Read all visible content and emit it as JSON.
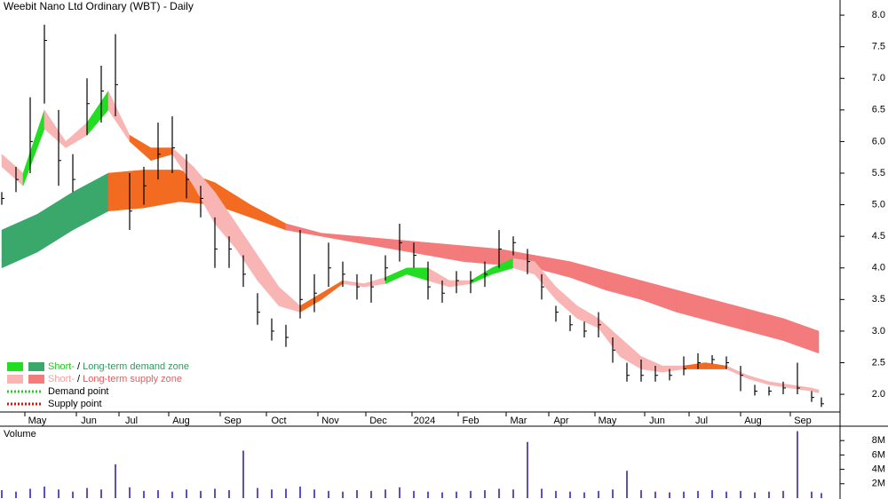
{
  "chart_data": [
    {
      "type": "ohlc",
      "title": "Weebit Nano Ltd Ordinary (WBT) - Daily",
      "color": "#000000",
      "x": [
        0,
        8,
        16,
        24,
        32,
        40,
        48,
        56,
        64,
        72,
        80,
        88,
        96,
        104,
        112,
        120,
        128,
        136,
        144,
        152,
        160,
        168,
        176,
        184,
        192,
        200,
        208,
        216,
        224,
        232,
        240,
        248,
        256,
        264,
        272,
        280,
        288,
        296,
        304,
        312,
        320,
        328,
        336,
        344,
        352,
        360,
        368,
        376,
        384,
        392,
        400,
        408,
        416,
        424,
        432,
        440,
        448,
        456,
        461.5
      ],
      "high": [
        5.2,
        5.6,
        6.7,
        7.85,
        6.5,
        5.8,
        7.0,
        7.2,
        7.7,
        5.5,
        5.6,
        6.3,
        6.4,
        5.8,
        5.3,
        4.8,
        4.5,
        4.2,
        3.6,
        3.2,
        3.1,
        4.6,
        3.9,
        4.4,
        4.1,
        3.9,
        3.9,
        4.2,
        4.7,
        4.4,
        4.1,
        3.8,
        3.95,
        3.95,
        4.1,
        4.6,
        4.5,
        4.3,
        3.9,
        3.4,
        3.25,
        3.15,
        3.3,
        2.9,
        2.5,
        2.55,
        2.45,
        2.4,
        2.6,
        2.65,
        2.62,
        2.6,
        2.45,
        2.15,
        2.12,
        2.2,
        2.5,
        2.05,
        1.95
      ],
      "low": [
        5.0,
        5.2,
        5.5,
        6.6,
        5.3,
        5.2,
        6.1,
        6.3,
        6.4,
        4.6,
        5.0,
        5.4,
        5.5,
        5.1,
        4.8,
        4.0,
        4.0,
        3.7,
        3.1,
        2.85,
        2.75,
        3.2,
        3.3,
        3.7,
        3.7,
        3.5,
        3.45,
        3.8,
        4.1,
        4.0,
        3.5,
        3.45,
        3.6,
        3.6,
        3.7,
        4.0,
        4.2,
        3.9,
        3.5,
        3.15,
        3.0,
        2.9,
        2.9,
        2.5,
        2.2,
        2.2,
        2.2,
        2.22,
        2.3,
        2.4,
        2.48,
        2.4,
        2.05,
        1.98,
        1.98,
        2.0,
        2.0,
        1.88,
        1.8
      ],
      "close": [
        5.1,
        5.4,
        6.0,
        7.6,
        5.7,
        5.4,
        6.6,
        6.8,
        6.9,
        4.9,
        5.3,
        5.8,
        5.9,
        5.4,
        5.1,
        4.3,
        4.3,
        3.9,
        3.3,
        3.0,
        2.9,
        3.5,
        3.6,
        4.0,
        3.9,
        3.7,
        3.7,
        4.0,
        4.4,
        4.2,
        3.7,
        3.6,
        3.8,
        3.8,
        3.9,
        4.3,
        4.4,
        4.1,
        3.7,
        3.3,
        3.1,
        3.0,
        3.1,
        2.7,
        2.3,
        2.3,
        2.3,
        2.3,
        2.4,
        2.5,
        2.55,
        2.5,
        2.3,
        2.05,
        2.05,
        2.1,
        2.1,
        1.95,
        1.85
      ],
      "bands": [
        {
          "x": [
            0,
            20,
            40,
            60,
            80,
            100,
            120,
            140,
            160,
            180,
            200,
            220,
            240,
            260,
            280,
            300,
            320,
            340,
            360,
            380,
            400,
            420,
            440,
            460
          ],
          "upper": [
            4.6,
            4.85,
            5.2,
            5.5,
            5.55,
            5.55,
            5.35,
            5.0,
            4.7,
            4.55,
            4.5,
            4.45,
            4.4,
            4.35,
            4.3,
            4.2,
            4.1,
            3.95,
            3.8,
            3.65,
            3.5,
            3.35,
            3.2,
            3.0
          ],
          "lower": [
            4.0,
            4.25,
            4.6,
            4.9,
            4.95,
            5.05,
            5.0,
            4.8,
            4.6,
            4.5,
            4.4,
            4.3,
            4.2,
            4.1,
            4.05,
            4.0,
            3.85,
            3.65,
            3.5,
            3.3,
            3.15,
            3.0,
            2.85,
            2.65
          ],
          "colors": [
            "#3aa86a",
            "#3aa86a",
            "#3aa86a",
            "#f36b21",
            "#f36b21",
            "#f36b21",
            "#f36b21",
            "#f36b21",
            "#f47b7b",
            "#f47b7b",
            "#f47b7b",
            "#f47b7b",
            "#f47b7b",
            "#f47b7b",
            "#f47b7b",
            "#f47b7b",
            "#f47b7b",
            "#f47b7b",
            "#f47b7b",
            "#f47b7b",
            "#f47b7b",
            "#f47b7b",
            "#f47b7b"
          ]
        },
        {
          "x": [
            0,
            12,
            24,
            36,
            48,
            60,
            72,
            84,
            96,
            108,
            120,
            132,
            144,
            156,
            168,
            180,
            192,
            204,
            216,
            228,
            240,
            252,
            264,
            276,
            288,
            300,
            312,
            324,
            336,
            348,
            360,
            372,
            384,
            396,
            408,
            420,
            432,
            444,
            456,
            460
          ],
          "upper": [
            5.8,
            5.5,
            6.5,
            6.0,
            6.3,
            6.8,
            6.1,
            5.9,
            5.9,
            5.6,
            5.2,
            4.7,
            4.2,
            3.7,
            3.4,
            3.6,
            3.8,
            3.75,
            3.85,
            4.0,
            4.0,
            3.8,
            3.8,
            4.0,
            4.15,
            4.1,
            3.7,
            3.4,
            3.2,
            2.9,
            2.6,
            2.45,
            2.45,
            2.5,
            2.45,
            2.3,
            2.2,
            2.15,
            2.1,
            2.07
          ],
          "lower": [
            5.6,
            5.3,
            6.2,
            5.9,
            6.1,
            6.5,
            6.0,
            5.7,
            5.8,
            5.3,
            4.7,
            4.3,
            3.8,
            3.4,
            3.3,
            3.5,
            3.75,
            3.7,
            3.75,
            3.9,
            3.8,
            3.7,
            3.75,
            3.9,
            4.0,
            3.9,
            3.5,
            3.2,
            3.05,
            2.6,
            2.4,
            2.35,
            2.4,
            2.4,
            2.4,
            2.25,
            2.15,
            2.1,
            2.05,
            2.02
          ],
          "colors": [
            "#f9b4b4",
            "#22dd22",
            "#f9b4b4",
            "#f9b4b4",
            "#22dd22",
            "#f9b4b4",
            "#f36b21",
            "#f36b21",
            "#f9b4b4",
            "#f9b4b4",
            "#f9b4b4",
            "#f9b4b4",
            "#f9b4b4",
            "#f9b4b4",
            "#f36b21",
            "#f36b21",
            "#f9b4b4",
            "#f9b4b4",
            "#22dd22",
            "#22dd22",
            "#f9b4b4",
            "#f9b4b4",
            "#22dd22",
            "#22dd22",
            "#f9b4b4",
            "#f9b4b4",
            "#f9b4b4",
            "#f9b4b4",
            "#f9b4b4",
            "#f9b4b4",
            "#f9b4b4",
            "#f9b4b4",
            "#f36b21",
            "#f36b21",
            "#f9b4b4",
            "#f9b4b4",
            "#f9b4b4",
            "#f9b4b4",
            "#f9b4b4"
          ]
        }
      ],
      "xlim": [
        0,
        472
      ],
      "xticks": [
        {
          "value": 20,
          "label": "May"
        },
        {
          "value": 49,
          "label": "Jun"
        },
        {
          "value": 73,
          "label": "Jul"
        },
        {
          "value": 101,
          "label": "Aug"
        },
        {
          "value": 130,
          "label": "Sep"
        },
        {
          "value": 156,
          "label": "Oct"
        },
        {
          "value": 185,
          "label": "Nov"
        },
        {
          "value": 212,
          "label": "Dec"
        },
        {
          "value": 238,
          "label": "2024"
        },
        {
          "value": 264,
          "label": "Feb"
        },
        {
          "value": 291,
          "label": "Mar"
        },
        {
          "value": 315,
          "label": "Apr"
        },
        {
          "value": 341,
          "label": "May"
        },
        {
          "value": 369,
          "label": "Jun"
        },
        {
          "value": 394,
          "label": "Jul"
        },
        {
          "value": 423,
          "label": "Aug"
        },
        {
          "value": 451,
          "label": "Sep"
        }
      ],
      "ylim": [
        1.72,
        8.24
      ],
      "yticks": [
        {
          "value": 2,
          "label": "2.0"
        },
        2.5,
        {
          "value": 3,
          "label": "3.0"
        },
        3.5,
        {
          "value": 4,
          "label": "4.0"
        },
        4.5,
        {
          "value": 5,
          "label": "5.0"
        },
        5.5,
        {
          "value": 6,
          "label": "6.0"
        },
        6.5,
        {
          "value": 7,
          "label": "7.0"
        },
        7.5,
        {
          "value": 8,
          "label": "8.0"
        }
      ],
      "legend": [
        {
          "style": "zone",
          "parts": [
            "Short-",
            " / ",
            "Long-term demand zone"
          ],
          "text_colors": [
            "#22cc22",
            "#000000",
            "#2e9a5e"
          ],
          "swatch_colors": [
            "#22dd22",
            "#3aa86a"
          ]
        },
        {
          "style": "zone",
          "parts": [
            "Short-",
            " / ",
            "Long-term supply zone"
          ],
          "text_colors": [
            "#f4a0a0",
            "#000000",
            "#e85c5c"
          ],
          "swatch_colors": [
            "#f9b4b4",
            "#f47b7b"
          ]
        },
        {
          "style": "dotted",
          "label": "Demand point",
          "color": "#22cc22"
        },
        {
          "style": "dotted",
          "label": "Supply point",
          "color": "#dd1111"
        }
      ]
    },
    {
      "type": "bar",
      "title": "Volume",
      "color": "#5b4fcf",
      "values": [
        1.1,
        0.9,
        1.3,
        1.6,
        1.2,
        0.9,
        1.4,
        1.2,
        4.7,
        1.5,
        1.0,
        1.1,
        0.9,
        1.2,
        1.0,
        1.3,
        1.1,
        6.6,
        1.4,
        1.2,
        1.3,
        1.6,
        1.2,
        1.0,
        0.9,
        1.1,
        1.0,
        1.2,
        1.5,
        1.0,
        0.9,
        0.8,
        0.9,
        1.0,
        1.1,
        1.3,
        1.2,
        7.8,
        1.3,
        1.0,
        0.9,
        0.8,
        1.0,
        1.2,
        3.8,
        1.1,
        0.9,
        0.8,
        0.9,
        1.0,
        1.1,
        0.9,
        1.0,
        0.8,
        0.9,
        1.0,
        9.3,
        0.9,
        0.7
      ],
      "ylim": [
        0,
        10
      ],
      "yticks": [
        {
          "value": 2,
          "label": "2M"
        },
        {
          "value": 4,
          "label": "4M"
        },
        {
          "value": 6,
          "label": "6M"
        },
        {
          "value": 8,
          "label": "8M"
        }
      ]
    }
  ]
}
